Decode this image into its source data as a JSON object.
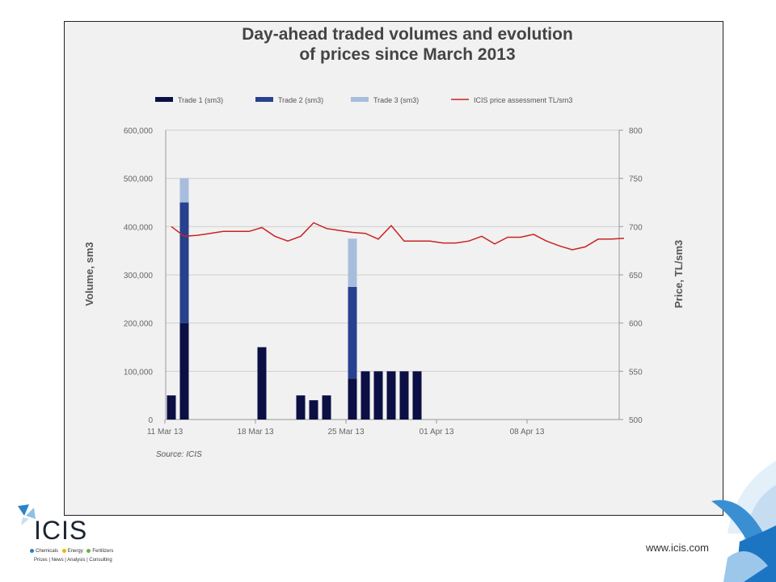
{
  "chart_data": {
    "type": "bar",
    "title_lines": [
      "Day-ahead traded volumes and evolution",
      "of prices since March 2013"
    ],
    "ylabel_left": "Volume, sm3",
    "ylabel_right": "Price, TL/sm3",
    "y_left_lim": [
      0,
      600000
    ],
    "y_left_ticks": [
      "0",
      "100,000",
      "200,000",
      "300,000",
      "400,000",
      "500,000",
      "600,000"
    ],
    "y_right_lim": [
      500,
      800
    ],
    "y_right_ticks": [
      "500",
      "550",
      "600",
      "650",
      "700",
      "750",
      "800"
    ],
    "x_tick_labels": [
      "11 Mar 13",
      "18 Mar 13",
      "25 Mar 13",
      "01 Apr 13",
      "08 Apr 13"
    ],
    "legend_position": "top",
    "grid": "horizontal",
    "source": "Source: ICIS",
    "colors": {
      "trade1": "#0c0f44",
      "trade2": "#27418f",
      "trade3": "#a8bddd",
      "price": "#cc2222"
    },
    "series": [
      {
        "name": "Trade 1 (sm3)",
        "stack": "volume",
        "points": [
          [
            "11 Mar",
            50000
          ],
          [
            "12 Mar",
            200000
          ],
          [
            "18 Mar",
            150000
          ],
          [
            "21 Mar",
            50000
          ],
          [
            "22 Mar",
            40000
          ],
          [
            "23 Mar",
            50000
          ],
          [
            "25 Mar",
            85000
          ],
          [
            "26 Mar",
            100000
          ],
          [
            "27 Mar",
            100000
          ],
          [
            "28 Mar",
            100000
          ],
          [
            "29 Mar",
            100000
          ],
          [
            "30 Mar",
            100000
          ]
        ]
      },
      {
        "name": "Trade 2 (sm3)",
        "stack": "volume",
        "points": [
          [
            "12 Mar",
            250000
          ],
          [
            "25 Mar",
            190000
          ]
        ]
      },
      {
        "name": "Trade 3 (sm3)",
        "stack": "volume",
        "points": [
          [
            "12 Mar",
            50000
          ],
          [
            "25 Mar",
            100000
          ]
        ]
      },
      {
        "name": "ICIS price assessment TL/sm3",
        "axis": "right",
        "points": [
          [
            "11 Mar",
            700
          ],
          [
            "12 Mar",
            690
          ],
          [
            "13 Mar",
            691
          ],
          [
            "14 Mar",
            693
          ],
          [
            "15 Mar",
            695
          ],
          [
            "16 Mar",
            695
          ],
          [
            "17 Mar",
            695
          ],
          [
            "18 Mar",
            699
          ],
          [
            "19 Mar",
            690
          ],
          [
            "20 Mar",
            685
          ],
          [
            "21 Mar",
            690
          ],
          [
            "22 Mar",
            704
          ],
          [
            "23 Mar",
            698
          ],
          [
            "24 Mar",
            696
          ],
          [
            "25 Mar",
            694
          ],
          [
            "26 Mar",
            693
          ],
          [
            "27 Mar",
            687
          ],
          [
            "28 Mar",
            701
          ],
          [
            "29 Mar",
            685
          ],
          [
            "30 Mar",
            685
          ],
          [
            "31 Mar",
            685
          ],
          [
            "01 Apr",
            683
          ],
          [
            "02 Apr",
            683
          ],
          [
            "03 Apr",
            685
          ],
          [
            "04 Apr",
            690
          ],
          [
            "05 Apr",
            682
          ],
          [
            "06 Apr",
            689
          ],
          [
            "07 Apr",
            689
          ],
          [
            "08 Apr",
            692
          ],
          [
            "09 Apr",
            685
          ],
          [
            "10 Apr",
            680
          ],
          [
            "11 Apr",
            676
          ],
          [
            "12 Apr",
            679
          ],
          [
            "13 Apr",
            687
          ],
          [
            "14 Apr",
            687
          ],
          [
            "15 Apr",
            688
          ]
        ]
      }
    ]
  },
  "logo": {
    "name": "ICIS",
    "sectors": [
      "Chemicals",
      "Energy",
      "Fertilizers"
    ],
    "sector_colors": [
      "#2f7fc1",
      "#f0b400",
      "#6ab04c"
    ],
    "services": "Prices | News | Analysis | Consulting"
  },
  "footer": {
    "website": "www.icis.com"
  }
}
